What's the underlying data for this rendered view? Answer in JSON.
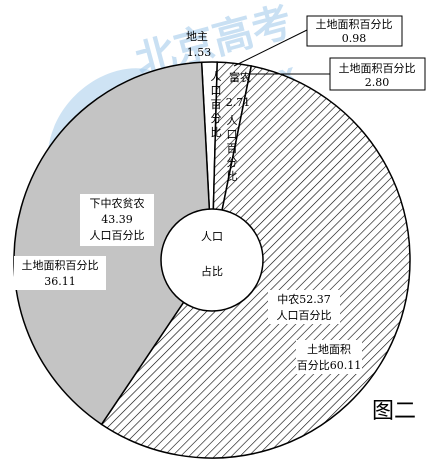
{
  "figure_label": "图二",
  "watermark": {
    "brand": "北京高考",
    "url": "www.gaokzx"
  },
  "center_label": {
    "line1": "人口",
    "line2": "占比"
  },
  "labels": {
    "dizhu_name": "地主",
    "dizhu_pop": "1.53",
    "dizhu_pop_caption": "人口百分比",
    "dizhu_land_caption": "土地面积百分比",
    "dizhu_land": "0.98",
    "funong_name": "富农",
    "funong_pop": "2.71",
    "funong_pop_caption": "人口百分比",
    "funong_land_caption": "土地面积百分比",
    "funong_land": "2.80",
    "zhongnong_pop": "中农52.37",
    "zhongnong_pop_caption": "人口百分比",
    "zhongnong_land_caption": "土地面积",
    "zhongnong_land": "百分比60.11",
    "xiazhong_name": "下中农贫农",
    "xiazhong_pop": "43.39",
    "xiazhong_pop_caption": "人口百分比",
    "xiazhong_land_caption": "土地面积百分比",
    "xiazhong_land": "36.11"
  },
  "chart_data": {
    "type": "pie",
    "style": "donut",
    "title": "",
    "categories": [
      "地主",
      "富农",
      "中农",
      "下中农贫农"
    ],
    "series": [
      {
        "name": "人口百分比",
        "values": [
          1.53,
          2.71,
          52.37,
          43.39
        ]
      },
      {
        "name": "土地面积百分比",
        "values": [
          0.98,
          2.8,
          60.11,
          36.11
        ]
      }
    ],
    "fills": [
      "white",
      "hatch",
      "hatch",
      "#c4c4c4"
    ]
  }
}
